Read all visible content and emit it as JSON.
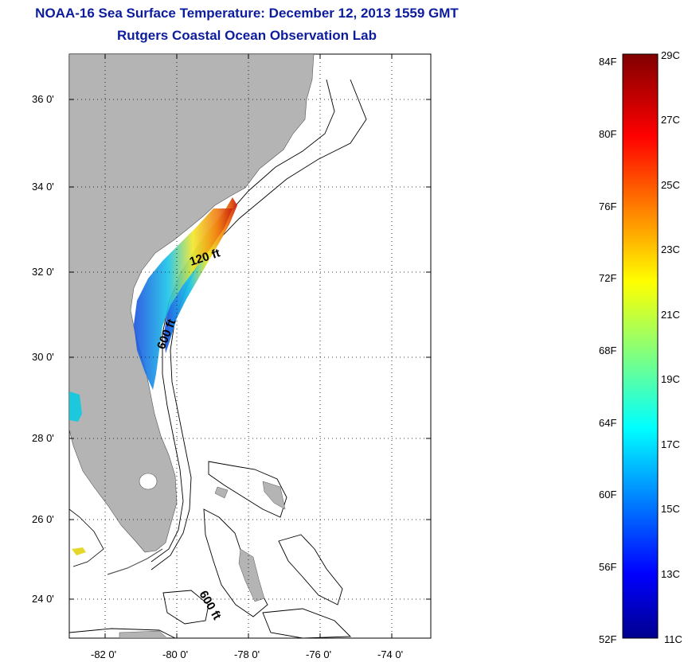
{
  "title": {
    "line1": "NOAA-16 Sea Surface Temperature:  December 12, 2013 1559 GMT",
    "line2": "Rutgers Coastal Ocean Observation Lab"
  },
  "map": {
    "lat_labels": [
      "36 0'",
      "34 0'",
      "32 0'",
      "30 0'",
      "28 0'",
      "26 0'",
      "24 0'"
    ],
    "lon_labels": [
      "-82 0'",
      "-80 0'",
      "-78 0'",
      "-76 0'",
      "-74 0'"
    ],
    "lat_range": [
      23,
      37.1
    ],
    "lon_range": [
      -83,
      -73
    ],
    "contour_labels": [
      "120 ft",
      "600 ft",
      "600 ft"
    ],
    "land_color": "#b4b4b4",
    "grid": "dotted"
  },
  "colorbar": {
    "fahrenheit_labels": [
      "84F",
      "80F",
      "76F",
      "72F",
      "68F",
      "64F",
      "60F",
      "56F",
      "52F"
    ],
    "celsius_labels": [
      "29C",
      "27C",
      "25C",
      "23C",
      "21C",
      "19C",
      "17C",
      "15C",
      "13C",
      "11C"
    ],
    "range_c": [
      11,
      29
    ],
    "colormap": "jet"
  }
}
